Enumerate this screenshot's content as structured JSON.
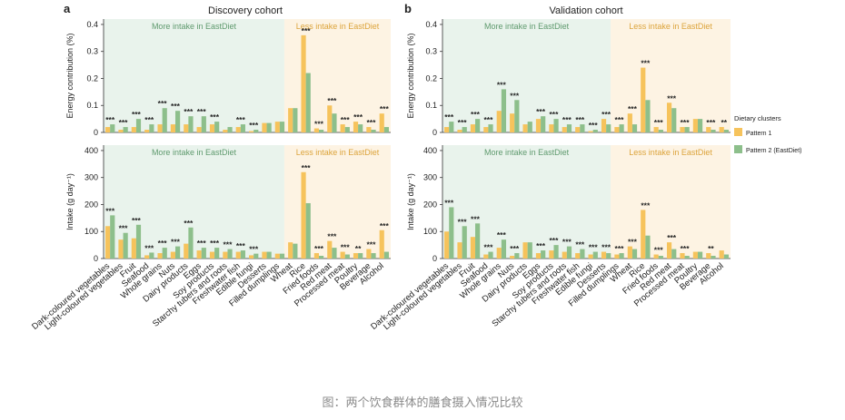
{
  "caption": "图：两个饮食群体的膳食摄入情况比较",
  "colors": {
    "pattern1": "#f6c35c",
    "pattern2": "#8dbf8b",
    "more_bg": "#e9f3ec",
    "less_bg": "#fdf3e3",
    "more_text": "#5f9a6e",
    "less_text": "#dca43c"
  },
  "legend": {
    "title": "Dietary clusters",
    "items": [
      "Pattern 1",
      "Pattern 2 (EastDiet)"
    ]
  },
  "chart_data": [
    {
      "panel_label": "a",
      "title": "Discovery cohort",
      "type": "bar",
      "region_labels": [
        "More intake in EastDiet",
        "Less intake in EastDiet"
      ],
      "split_after_index": 13,
      "categories": [
        "Dark-coloured vegetables",
        "Light-coloured vegetables",
        "Fruit",
        "Seafood",
        "Whole grains",
        "Nuts",
        "Dairy products",
        "Eggs",
        "Soy products",
        "Starchy tubers and roots",
        "Freshwater fish",
        "Edible fungi",
        "Desserts",
        "Filled dumplings",
        "Wheat",
        "Rice",
        "Fried foods",
        "Red meat",
        "Processed meat",
        "Poultry",
        "Beverage",
        "Alcohol"
      ],
      "energy": {
        "ylabel": "Energy contribution (%)",
        "ylim": [
          0,
          0.42
        ],
        "yticks": [
          0,
          0.1,
          0.2,
          0.3,
          0.4
        ],
        "ytick_labels": [
          "0",
          "0.1",
          "0.2",
          "0.3",
          "0.4"
        ],
        "series": [
          {
            "name": "Pattern 1",
            "values": [
              0.02,
              0.01,
              0.02,
              0.01,
              0.03,
              0.03,
              0.03,
              0.02,
              0.03,
              0.01,
              0.02,
              0.005,
              0.035,
              0.04,
              0.09,
              0.36,
              0.015,
              0.1,
              0.03,
              0.04,
              0.02,
              0.07
            ]
          },
          {
            "name": "Pattern 2 (EastDiet)",
            "values": [
              0.03,
              0.02,
              0.05,
              0.03,
              0.09,
              0.08,
              0.06,
              0.06,
              0.04,
              0.02,
              0.03,
              0.01,
              0.035,
              0.04,
              0.09,
              0.22,
              0.01,
              0.07,
              0.02,
              0.03,
              0.01,
              0.02
            ]
          }
        ],
        "sig": [
          "***",
          "***",
          "***",
          "***",
          "***",
          "***",
          "***",
          "***",
          "***",
          "",
          "***",
          "***",
          "",
          "",
          "",
          "***",
          "***",
          "***",
          "***",
          "***",
          "***",
          "***"
        ]
      },
      "intake": {
        "ylabel": "Intake (g day⁻¹)",
        "ylim": [
          0,
          420
        ],
        "yticks": [
          0,
          100,
          200,
          300,
          400
        ],
        "ytick_labels": [
          "0",
          "100",
          "200",
          "300",
          "400"
        ],
        "series": [
          {
            "name": "Pattern 1",
            "values": [
              120,
              70,
              75,
              12,
              20,
              25,
              55,
              30,
              25,
              25,
              25,
              12,
              25,
              18,
              60,
              320,
              20,
              65,
              25,
              20,
              35,
              105
            ]
          },
          {
            "name": "Pattern 2 (EastDiet)",
            "values": [
              160,
              95,
              125,
              22,
              40,
              45,
              115,
              40,
              40,
              35,
              30,
              18,
              25,
              18,
              55,
              205,
              10,
              40,
              15,
              20,
              20,
              25
            ]
          }
        ],
        "sig": [
          "***",
          "***",
          "***",
          "***",
          "***",
          "***",
          "***",
          "***",
          "***",
          "***",
          "***",
          "***",
          "",
          "",
          "",
          "***",
          "***",
          "***",
          "***",
          "**",
          "***",
          "***"
        ]
      }
    },
    {
      "panel_label": "b",
      "title": "Validation cohort",
      "type": "bar",
      "region_labels": [
        "More intake in EastDiet",
        "Less intake in EastDiet"
      ],
      "split_after_index": 12,
      "categories": [
        "Dark-coloured vegetables",
        "Light-coloured vegetables",
        "Fruit",
        "Seafood",
        "Whole grains",
        "Nuts",
        "Dairy products",
        "Eggs",
        "Soy products",
        "Starchy tubers and roots",
        "Freshwater fish",
        "Edible fungi",
        "Desserts",
        "Filled dumplings",
        "Wheat",
        "Rice",
        "Fried foods",
        "Red meat",
        "Processed meat",
        "Poultry",
        "Beverage",
        "Alcohol"
      ],
      "energy": {
        "ylabel": "Energy contribution (%)",
        "ylim": [
          0,
          0.42
        ],
        "yticks": [
          0,
          0.1,
          0.2,
          0.3,
          0.4
        ],
        "ytick_labels": [
          "0",
          "0.1",
          "0.2",
          "0.3",
          "0.4"
        ],
        "series": [
          {
            "name": "Pattern 1",
            "values": [
              0.02,
              0.01,
              0.03,
              0.02,
              0.08,
              0.07,
              0.03,
              0.05,
              0.03,
              0.02,
              0.02,
              0.005,
              0.05,
              0.02,
              0.07,
              0.24,
              0.02,
              0.11,
              0.02,
              0.05,
              0.02,
              0.02
            ]
          },
          {
            "name": "Pattern 2 (EastDiet)",
            "values": [
              0.04,
              0.02,
              0.05,
              0.03,
              0.16,
              0.12,
              0.04,
              0.06,
              0.05,
              0.03,
              0.03,
              0.01,
              0.03,
              0.03,
              0.03,
              0.12,
              0.01,
              0.09,
              0.02,
              0.05,
              0.01,
              0.01
            ]
          }
        ],
        "sig": [
          "***",
          "***",
          "***",
          "***",
          "***",
          "***",
          "",
          "***",
          "***",
          "***",
          "***",
          "***",
          "***",
          "***",
          "***",
          "***",
          "***",
          "***",
          "***",
          "",
          "***",
          "**"
        ]
      },
      "intake": {
        "ylabel": "Intake (g day⁻¹)",
        "ylim": [
          0,
          420
        ],
        "yticks": [
          0,
          100,
          200,
          300,
          400
        ],
        "ytick_labels": [
          "0",
          "100",
          "200",
          "300",
          "400"
        ],
        "series": [
          {
            "name": "Pattern 1",
            "values": [
              100,
              60,
              80,
              15,
              40,
              10,
              60,
              20,
              30,
              25,
              20,
              15,
              25,
              15,
              45,
              180,
              15,
              60,
              20,
              25,
              20,
              30
            ]
          },
          {
            "name": "Pattern 2 (EastDiet)",
            "values": [
              190,
              120,
              130,
              25,
              70,
              20,
              60,
              30,
              50,
              45,
              35,
              25,
              20,
              20,
              35,
              85,
              10,
              35,
              10,
              25,
              10,
              15
            ]
          }
        ],
        "sig": [
          "***",
          "***",
          "***",
          "***",
          "***",
          "***",
          "",
          "***",
          "***",
          "***",
          "***",
          "***",
          "***",
          "***",
          "***",
          "***",
          "***",
          "***",
          "***",
          "",
          "**",
          ""
        ]
      }
    }
  ]
}
